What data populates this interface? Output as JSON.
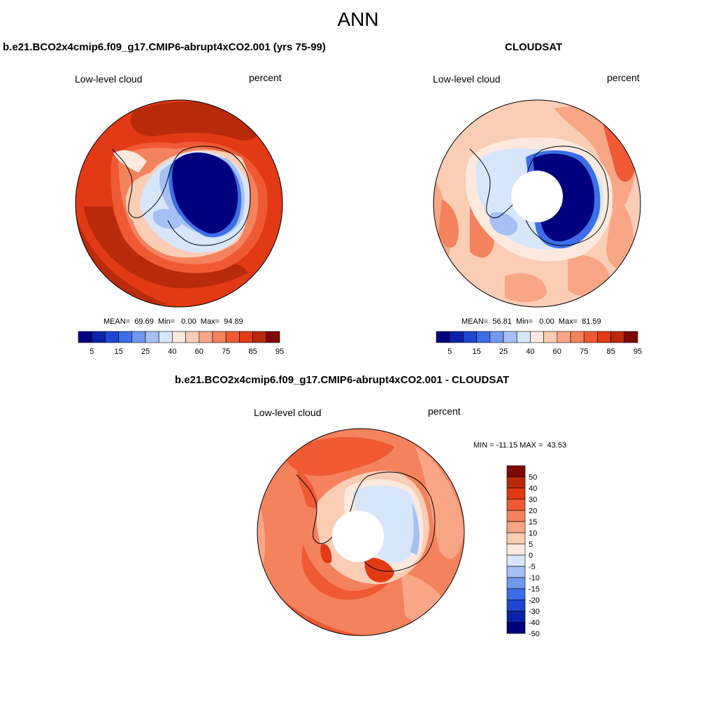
{
  "figure_title": "ANN",
  "panels": {
    "model": {
      "title": "b.e21.BCO2x4cmip6.f09_g17.CMIP6-abrupt4xCO2.001 (yrs 75-99)",
      "variable": "Low-level cloud",
      "units": "percent",
      "stats": "MEAN=  69.69  Min=   0.00  Max=  94.89"
    },
    "obs": {
      "title": "CLOUDSAT",
      "variable": "Low-level cloud",
      "units": "percent",
      "stats": "MEAN=  56.81  Min=   0.00  Max=  81.59"
    },
    "diff": {
      "title": "b.e21.BCO2x4cmip6.f09_g17.CMIP6-abrupt4xCO2.001 - CLOUDSAT",
      "variable": "Low-level cloud",
      "units": "percent",
      "stats": "MIN = -11.15 MAX =  43.53"
    }
  },
  "colorbars": {
    "abs": {
      "colors": [
        "#00007f",
        "#0a22aa",
        "#1f47d1",
        "#3d6ee8",
        "#7098ed",
        "#a5c0f3",
        "#d7e6fb",
        "#fde9dd",
        "#fbcdb5",
        "#f8a686",
        "#f4825d",
        "#ef5a35",
        "#e13a14",
        "#b92a0a",
        "#7e0a05"
      ],
      "labels": [
        "5",
        "15",
        "25",
        "40",
        "60",
        "75",
        "85",
        "95"
      ]
    },
    "diff": {
      "colors": [
        "#7e0a05",
        "#b92a0a",
        "#e13a14",
        "#ef5a35",
        "#f4825d",
        "#f8a686",
        "#fbcdb5",
        "#fde9dd",
        "#d7e6fb",
        "#a5c0f3",
        "#7098ed",
        "#3d6ee8",
        "#1f47d1",
        "#0a22aa",
        "#00007f"
      ],
      "labels": [
        "50",
        "40",
        "30",
        "20",
        "15",
        "10",
        "5",
        "0",
        "-5",
        "-10",
        "-15",
        "-20",
        "-30",
        "-40",
        "-50"
      ]
    }
  },
  "colors": {
    "deep_red": "#b92a0a",
    "red": "#e13a14",
    "orange_red": "#ef5a35",
    "salmon": "#f4825d",
    "light_salmon": "#f8a686",
    "pale": "#fbcdb5",
    "very_pale": "#fde9dd",
    "pale_blue": "#d7e6fb",
    "light_blue": "#a5c0f3",
    "mid_blue": "#3d6ee8",
    "deep_blue": "#00007f"
  }
}
